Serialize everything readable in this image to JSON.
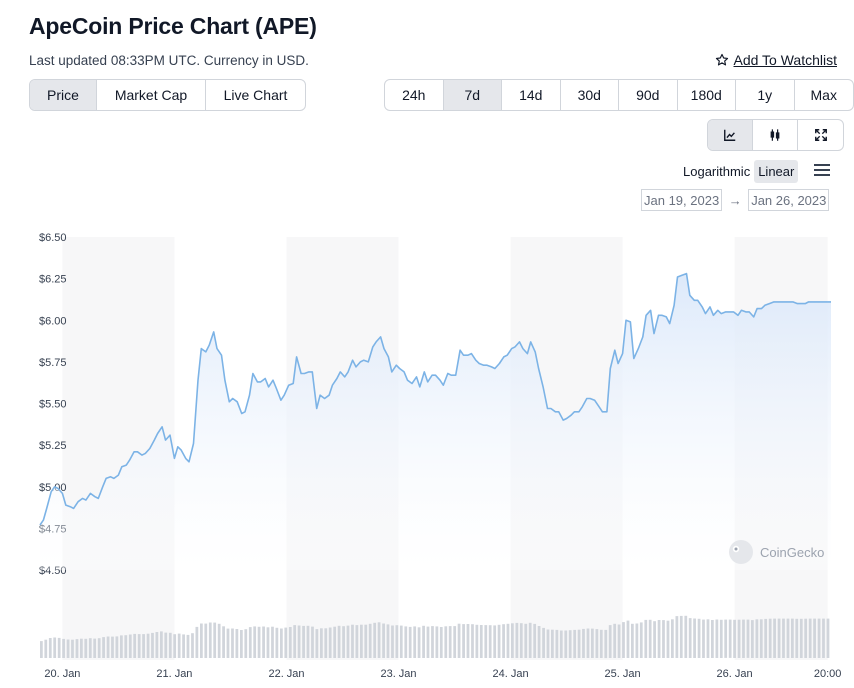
{
  "header": {
    "title": "ApeCoin Price Chart (APE)",
    "subtitle": "Last updated 08:33PM UTC. Currency in USD.",
    "watchlist_label": "Add To Watchlist"
  },
  "view_tabs": [
    {
      "label": "Price",
      "active": true
    },
    {
      "label": "Market Cap",
      "active": false
    },
    {
      "label": "Live Chart",
      "active": false
    }
  ],
  "ranges": [
    {
      "label": "24h",
      "active": false
    },
    {
      "label": "7d",
      "active": true
    },
    {
      "label": "14d",
      "active": false
    },
    {
      "label": "30d",
      "active": false
    },
    {
      "label": "90d",
      "active": false
    },
    {
      "label": "180d",
      "active": false
    },
    {
      "label": "1y",
      "active": false
    },
    {
      "label": "Max",
      "active": false
    }
  ],
  "chart_types": [
    {
      "icon": "line-chart-icon",
      "active": true
    },
    {
      "icon": "candlestick-icon",
      "active": false
    },
    {
      "icon": "expand-icon",
      "active": false
    }
  ],
  "scale": {
    "options": [
      "Logarithmic",
      "Linear"
    ],
    "active": "Linear"
  },
  "date_range": {
    "from": "Jan 19, 2023",
    "to": "Jan 26, 2023",
    "arrow": "→"
  },
  "watermark": "CoinGecko",
  "colors": {
    "line": "#7cb3e6",
    "fill_top": "#dbe8fa",
    "fill_bottom": "#ffffff",
    "volume": "#d1d5db",
    "active_bg": "#e5e7eb"
  },
  "chart_data": {
    "type": "area",
    "title": "",
    "xlabel": "",
    "ylabel": "",
    "ylim": [
      4.5,
      6.5
    ],
    "y_ticks": [
      "$4.50",
      "$4.75",
      "$5.00",
      "$5.25",
      "$5.50",
      "$5.75",
      "$6.00",
      "$6.25",
      "$6.50"
    ],
    "y_tick_values": [
      4.5,
      4.75,
      5.0,
      5.25,
      5.5,
      5.75,
      6.0,
      6.25,
      6.5
    ],
    "x_range_days": [
      19.8,
      26.86
    ],
    "x_ticks": [
      {
        "label": "20. Jan",
        "day": 20.0
      },
      {
        "label": "21. Jan",
        "day": 21.0
      },
      {
        "label": "22. Jan",
        "day": 22.0
      },
      {
        "label": "23. Jan",
        "day": 23.0
      },
      {
        "label": "24. Jan",
        "day": 24.0
      },
      {
        "label": "25. Jan",
        "day": 25.0
      },
      {
        "label": "26. Jan",
        "day": 26.0
      },
      {
        "label": "20:00",
        "day": 26.83
      }
    ],
    "grid": "vertical-columns",
    "series": [
      {
        "day": [
          19.8,
          19.83,
          19.86,
          19.9,
          19.93,
          19.96,
          20.0,
          20.03,
          20.07,
          20.1,
          20.14,
          20.18,
          20.21,
          20.25,
          20.29,
          20.32,
          20.36,
          20.39,
          20.43,
          20.46,
          20.5,
          20.53,
          20.57,
          20.6,
          20.64,
          20.67,
          20.71,
          20.74,
          20.78,
          20.82,
          20.85,
          20.89,
          20.92,
          20.96,
          21.0,
          21.03,
          21.06,
          21.1,
          21.13,
          21.17,
          21.21,
          21.24,
          21.28,
          21.31,
          21.35,
          21.38,
          21.42,
          21.45,
          21.49,
          21.52,
          21.56,
          21.6,
          21.63,
          21.67,
          21.7,
          21.74,
          21.77,
          21.81,
          21.84,
          21.88,
          21.91,
          21.95,
          21.98,
          22.02,
          22.06,
          22.09,
          22.13,
          22.16,
          22.2,
          22.23,
          22.27,
          22.3,
          22.34,
          22.38,
          22.41,
          22.45,
          22.48,
          22.52,
          22.55,
          22.59,
          22.62,
          22.66,
          22.69,
          22.73,
          22.77,
          22.8,
          22.84,
          22.87,
          22.91,
          22.94,
          22.98,
          23.01,
          23.05,
          23.08,
          23.12,
          23.16,
          23.19,
          23.23,
          23.26,
          23.3,
          23.33,
          23.37,
          23.4,
          23.44,
          23.47,
          23.51,
          23.55,
          23.58,
          23.62,
          23.65,
          23.69,
          23.72,
          23.76,
          23.79,
          23.83,
          23.86,
          23.9,
          23.94,
          23.97,
          24.01,
          24.04,
          24.08,
          24.11,
          24.15,
          24.18,
          24.22,
          24.25,
          24.29,
          24.33,
          24.36,
          24.4,
          24.43,
          24.47,
          24.5,
          24.54,
          24.57,
          24.61,
          24.64,
          24.68,
          24.71,
          24.75,
          24.79,
          24.82,
          24.86,
          24.89,
          24.93,
          24.96,
          25.0,
          25.03,
          25.07,
          25.1,
          25.14,
          25.18,
          25.21,
          25.25,
          25.28,
          25.32,
          25.35,
          25.39,
          25.42,
          25.46,
          25.49,
          25.53,
          25.57,
          25.6,
          25.64,
          25.67,
          25.71,
          25.74,
          25.78,
          25.81,
          25.85,
          25.88,
          25.92,
          25.96,
          25.99,
          26.03,
          26.06,
          26.1,
          26.13,
          26.17,
          26.2,
          26.24,
          26.27,
          26.31,
          26.35,
          26.38,
          26.42,
          26.45,
          26.49,
          26.52,
          26.56,
          26.59,
          26.63,
          26.66,
          26.7,
          26.74,
          26.77,
          26.81,
          26.84,
          26.86
        ],
        "price": [
          4.77,
          4.8,
          4.87,
          4.97,
          5.0,
          4.99,
          4.96,
          4.89,
          4.88,
          4.87,
          4.91,
          4.93,
          4.92,
          4.96,
          4.94,
          4.93,
          5.0,
          5.05,
          5.06,
          5.05,
          5.07,
          5.12,
          5.13,
          5.16,
          5.21,
          5.21,
          5.19,
          5.2,
          5.23,
          5.28,
          5.32,
          5.36,
          5.28,
          5.31,
          5.17,
          5.24,
          5.22,
          5.17,
          5.15,
          5.26,
          5.64,
          5.83,
          5.81,
          5.85,
          5.93,
          5.83,
          5.79,
          5.64,
          5.51,
          5.53,
          5.51,
          5.44,
          5.45,
          5.55,
          5.68,
          5.63,
          5.63,
          5.65,
          5.6,
          5.64,
          5.59,
          5.52,
          5.55,
          5.61,
          5.62,
          5.78,
          5.68,
          5.68,
          5.69,
          5.69,
          5.47,
          5.55,
          5.53,
          5.55,
          5.61,
          5.65,
          5.69,
          5.66,
          5.69,
          5.76,
          5.72,
          5.75,
          5.76,
          5.75,
          5.84,
          5.87,
          5.9,
          5.83,
          5.78,
          5.69,
          5.73,
          5.71,
          5.69,
          5.64,
          5.62,
          5.66,
          5.6,
          5.69,
          5.63,
          5.67,
          5.67,
          5.64,
          5.61,
          5.68,
          5.67,
          5.67,
          5.82,
          5.79,
          5.79,
          5.8,
          5.76,
          5.74,
          5.73,
          5.73,
          5.72,
          5.71,
          5.74,
          5.78,
          5.79,
          5.83,
          5.84,
          5.87,
          5.83,
          5.8,
          5.87,
          5.81,
          5.71,
          5.6,
          5.47,
          5.47,
          5.45,
          5.45,
          5.4,
          5.41,
          5.43,
          5.45,
          5.45,
          5.48,
          5.53,
          5.53,
          5.52,
          5.48,
          5.45,
          5.45,
          5.71,
          5.82,
          5.74,
          5.8,
          6.0,
          5.99,
          5.77,
          5.83,
          5.9,
          6.03,
          6.06,
          5.92,
          6.03,
          6.03,
          6.02,
          5.98,
          6.09,
          6.26,
          6.27,
          6.28,
          6.15,
          6.12,
          6.12,
          6.08,
          6.04,
          6.08,
          6.03,
          6.06,
          6.04,
          6.05,
          6.05,
          6.05,
          6.03,
          6.06,
          6.05,
          6.05,
          6.02,
          6.07,
          6.07,
          6.09,
          6.1,
          6.11,
          6.11,
          6.11,
          6.11,
          6.11,
          6.11,
          6.1,
          6.1,
          6.1,
          6.11,
          6.11,
          6.11,
          6.11,
          6.11,
          6.11,
          6.11,
          6.11
        ]
      }
    ]
  }
}
